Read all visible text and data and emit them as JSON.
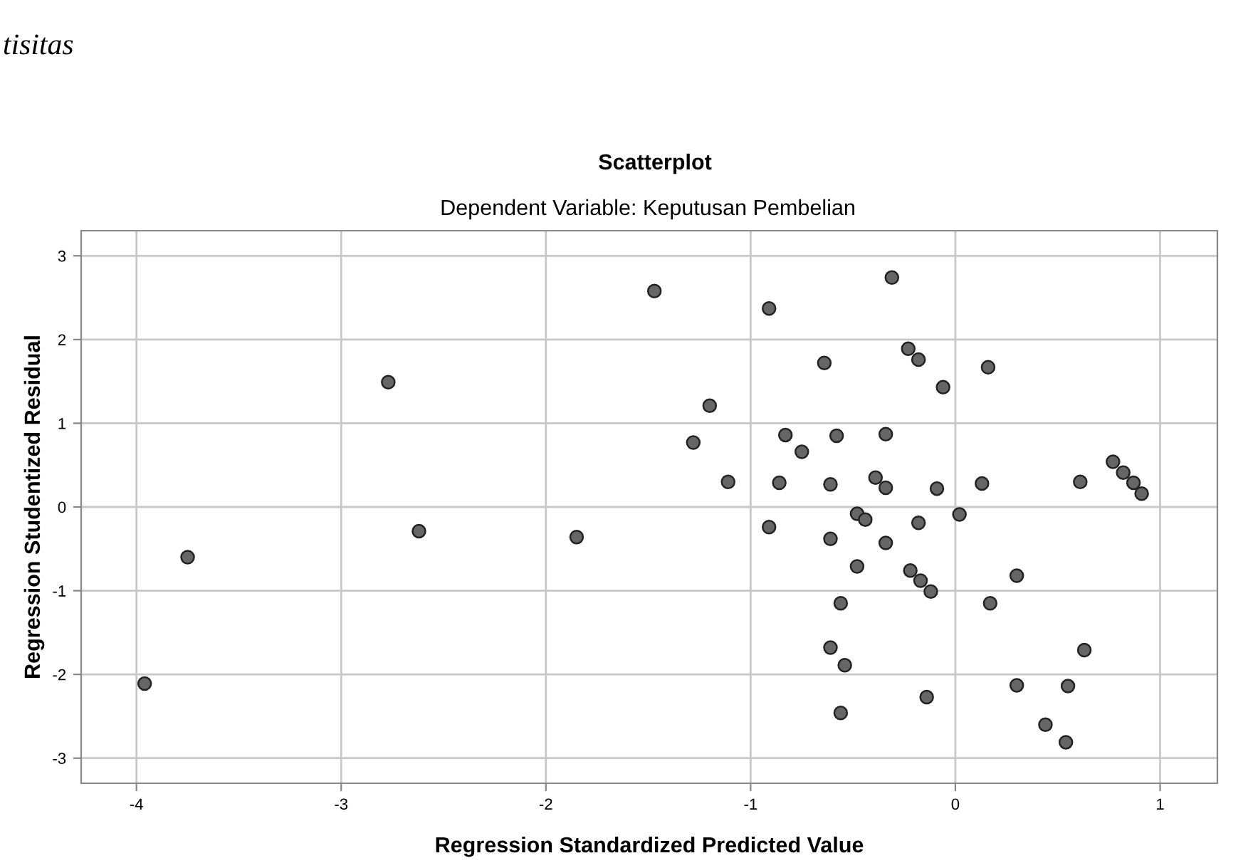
{
  "chart_data": {
    "type": "scatter",
    "title": "Scatterplot",
    "subtitle": "Dependent Variable: Keputusan Pembelian",
    "xlabel": "Regression Standardized Predicted Value",
    "ylabel": "Regression Studentized Residual",
    "annotations": [
      "tisitas"
    ],
    "xlim": [
      -4.27,
      1.28
    ],
    "ylim": [
      -3.3,
      3.3
    ],
    "xticks": [
      -4,
      -3,
      -2,
      -1,
      0,
      1
    ],
    "yticks": [
      -3,
      -2,
      -1,
      0,
      1,
      2,
      3
    ],
    "grid": true,
    "marker": "circle",
    "series": [
      {
        "color": "#666666",
        "x": [
          -3.96,
          -3.75,
          -2.77,
          -2.62,
          -1.85,
          -1.47,
          -0.91,
          -0.31,
          -1.2,
          -1.28,
          -0.64,
          -0.23,
          -0.18,
          -0.06,
          0.16,
          -0.83,
          -0.58,
          -0.34,
          -0.75,
          -1.11,
          -0.86,
          -0.61,
          -0.39,
          -0.34,
          -0.09,
          0.13,
          0.61,
          0.77,
          0.82,
          0.87,
          0.91,
          -0.48,
          -0.44,
          -0.91,
          -0.18,
          0.02,
          -0.61,
          -0.34,
          -0.48,
          -0.22,
          -0.17,
          -0.12,
          0.3,
          -0.56,
          0.17,
          -0.61,
          -0.54,
          0.63,
          0.3,
          0.55,
          -0.14,
          -0.56,
          0.44,
          0.54
        ],
        "values": [
          -2.11,
          -0.6,
          1.49,
          -0.29,
          -0.36,
          2.58,
          2.37,
          2.74,
          1.21,
          0.77,
          1.72,
          1.89,
          1.76,
          1.43,
          1.67,
          0.86,
          0.85,
          0.87,
          0.66,
          0.3,
          0.29,
          0.27,
          0.35,
          0.23,
          0.22,
          0.28,
          0.3,
          0.54,
          0.41,
          0.29,
          0.16,
          -0.08,
          -0.15,
          -0.24,
          -0.19,
          -0.09,
          -0.38,
          -0.43,
          -0.71,
          -0.76,
          -0.88,
          -1.01,
          -0.82,
          -1.15,
          -1.15,
          -1.68,
          -1.89,
          -1.71,
          -2.13,
          -2.14,
          -2.27,
          -2.46,
          -2.6,
          -2.81
        ]
      }
    ]
  }
}
